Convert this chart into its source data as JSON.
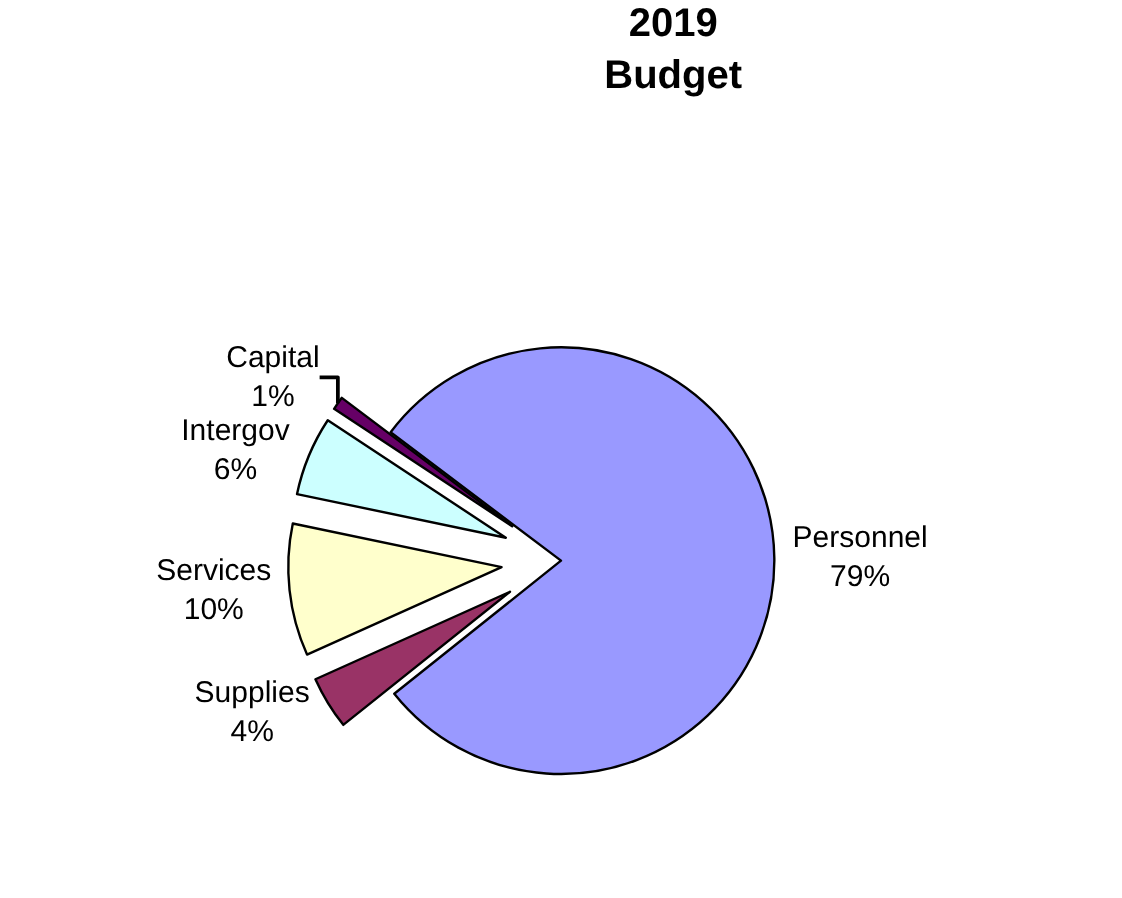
{
  "chart_data": {
    "type": "pie",
    "title": "2019\nBudget",
    "categories": [
      "Personnel",
      "Supplies",
      "Services",
      "Intergov",
      "Capital"
    ],
    "values": [
      79,
      4,
      10,
      6,
      1
    ],
    "value_labels": [
      "79%",
      "4%",
      "10%",
      "6%",
      "1%"
    ],
    "colors": [
      "#9999ff",
      "#993366",
      "#ffffcc",
      "#ccffff",
      "#660066"
    ],
    "legend": false
  }
}
